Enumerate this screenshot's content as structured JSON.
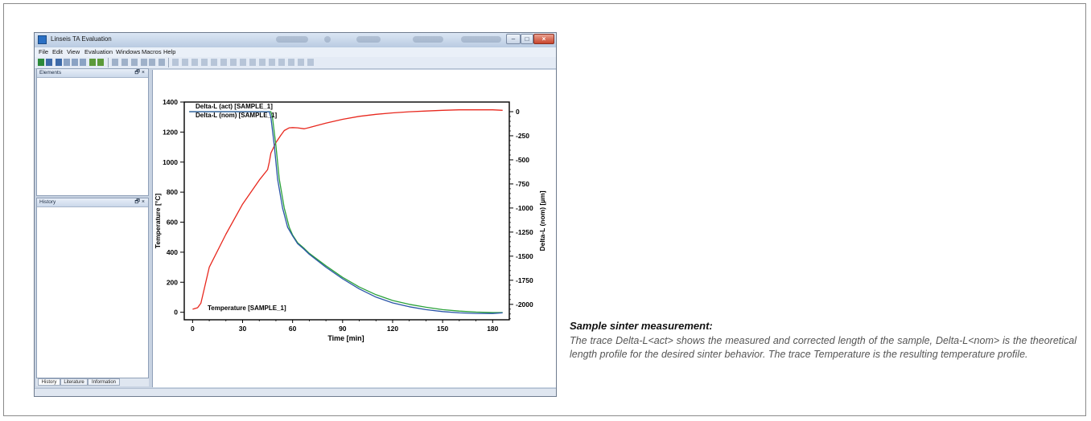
{
  "app": {
    "title": "Linseis TA Evaluation",
    "buttons": {
      "minimize": "–",
      "maximize": "□",
      "close": "×"
    }
  },
  "menu": [
    "File",
    "Edit",
    "View",
    "Evaluation",
    "Windows",
    "Macros",
    "Help"
  ],
  "panels": {
    "elements_title": "Elements",
    "history_title": "History",
    "panel_buttons": "🗗 ×"
  },
  "bottom_tabs": [
    "History",
    "Literature",
    "Information"
  ],
  "colors": {
    "temperature": "#e8281e",
    "delta_act": "#2aa13a",
    "delta_nom": "#2a55a8"
  },
  "chart_data": {
    "type": "line",
    "xlabel": "Time [min]",
    "ylabel_left": "Temperature [°C]",
    "ylabel_right": "Delta-L (nom) [µm]",
    "xlim": [
      -5,
      190
    ],
    "ylim_left": [
      -50,
      1400
    ],
    "ylim_right": [
      -2160,
      100
    ],
    "x_ticks": [
      0,
      30,
      60,
      90,
      120,
      150,
      180
    ],
    "y_left_ticks": [
      0,
      200,
      400,
      600,
      800,
      1000,
      1200,
      1400
    ],
    "y_right_ticks": [
      0,
      -250,
      -500,
      -750,
      -1000,
      -1250,
      -1500,
      -1750,
      -2000
    ],
    "series": [
      {
        "name": "Temperature [SAMPLE_1]",
        "axis": "left",
        "color": "#e8281e",
        "x": [
          0,
          3,
          5,
          10,
          20,
          30,
          40,
          45,
          46,
          47,
          50,
          53,
          55,
          58,
          60,
          63,
          67,
          70,
          80,
          90,
          100,
          110,
          120,
          130,
          140,
          150,
          160,
          170,
          180,
          186
        ],
        "y": [
          20,
          30,
          60,
          300,
          520,
          720,
          880,
          950,
          1000,
          1060,
          1130,
          1180,
          1210,
          1228,
          1230,
          1228,
          1222,
          1230,
          1260,
          1285,
          1305,
          1318,
          1328,
          1335,
          1340,
          1345,
          1348,
          1348,
          1348,
          1345
        ]
      },
      {
        "name": "Delta-L (act) [SAMPLE_1]",
        "axis": "right",
        "color": "#2aa13a",
        "x": [
          -2,
          47,
          48,
          50,
          52,
          55,
          58,
          60,
          63,
          67,
          70,
          80,
          90,
          100,
          110,
          120,
          130,
          140,
          150,
          160,
          170,
          180,
          186
        ],
        "y": [
          0,
          0,
          -70,
          -350,
          -700,
          -1000,
          -1200,
          -1280,
          -1360,
          -1420,
          -1470,
          -1600,
          -1720,
          -1820,
          -1900,
          -1960,
          -2000,
          -2030,
          -2055,
          -2070,
          -2080,
          -2085,
          -2085
        ]
      },
      {
        "name": "Delta-L (nom) [SAMPLE_1]",
        "axis": "right",
        "color": "#2a55a8",
        "x": [
          -2,
          46,
          47,
          49,
          51,
          54,
          57,
          60,
          63,
          67,
          70,
          80,
          90,
          100,
          110,
          120,
          130,
          140,
          150,
          160,
          170,
          180,
          186
        ],
        "y": [
          0,
          0,
          -60,
          -350,
          -700,
          -1000,
          -1200,
          -1290,
          -1370,
          -1430,
          -1480,
          -1615,
          -1735,
          -1840,
          -1925,
          -1985,
          -2025,
          -2055,
          -2075,
          -2088,
          -2094,
          -2095,
          -2088
        ]
      }
    ]
  },
  "caption": {
    "title": "Sample sinter measurement:",
    "text": "The trace Delta-L<act> shows the measured and corrected length of the sample, Delta-L<nom> is the theoretical length profile for the desired sinter behavior. The trace Temperature is the resulting temperature profile."
  }
}
